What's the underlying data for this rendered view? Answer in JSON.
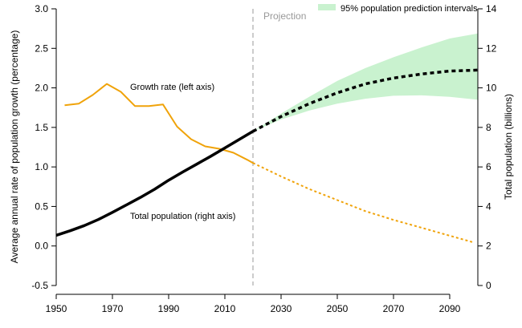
{
  "chart_data": {
    "type": "line",
    "title": "",
    "xlabel": "",
    "ylabel_left": "Average annual rate of population growth (percentage)",
    "ylabel_right": "Total population (billions)",
    "x_range": [
      1950,
      2100
    ],
    "x_ticks": [
      "1950",
      "1970",
      "1990",
      "2010",
      "2030",
      "2050",
      "2070",
      "2090"
    ],
    "y_left_range": [
      -0.5,
      3.0
    ],
    "y_left_ticks": [
      "-0.5",
      "0.0",
      "0.5",
      "1.0",
      "1.5",
      "2.0",
      "2.5",
      "3.0"
    ],
    "y_right_range": [
      0,
      14
    ],
    "y_right_ticks": [
      "0",
      "2",
      "4",
      "6",
      "8",
      "10",
      "12",
      "14"
    ],
    "projection_start": 2020,
    "projection_label": "Projection",
    "legend": {
      "label": "95% population prediction intervals",
      "position": "top-right",
      "color": "#c9f2cf"
    },
    "colors": {
      "growth": "#f0a30a",
      "population": "#000000",
      "projection_line": "#aaaaaa"
    },
    "annotations": {
      "growth": "Growth rate (left axis)",
      "population": "Total population (right axis)"
    },
    "series": [
      {
        "name": "Growth rate (left axis)",
        "axis": "left",
        "observed": {
          "x": [
            1953,
            1958,
            1963,
            1968,
            1973,
            1978,
            1983,
            1988,
            1993,
            1998,
            2003,
            2008,
            2013,
            2018,
            2020
          ],
          "y": [
            1.78,
            1.8,
            1.91,
            2.05,
            1.95,
            1.77,
            1.77,
            1.79,
            1.51,
            1.35,
            1.26,
            1.23,
            1.18,
            1.09,
            1.05
          ]
        },
        "projected": {
          "x": [
            2020,
            2030,
            2040,
            2050,
            2060,
            2070,
            2080,
            2090,
            2098
          ],
          "y": [
            1.05,
            0.88,
            0.72,
            0.58,
            0.44,
            0.33,
            0.23,
            0.13,
            0.05
          ]
        }
      },
      {
        "name": "Total population (right axis)",
        "axis": "right",
        "observed": {
          "x": [
            1950,
            1955,
            1960,
            1965,
            1970,
            1975,
            1980,
            1985,
            1990,
            1995,
            2000,
            2005,
            2010,
            2015,
            2020
          ],
          "y": [
            2.54,
            2.77,
            3.03,
            3.34,
            3.7,
            4.08,
            4.46,
            4.87,
            5.33,
            5.74,
            6.14,
            6.54,
            6.96,
            7.38,
            7.8
          ]
        },
        "projected": {
          "x": [
            2020,
            2030,
            2040,
            2050,
            2060,
            2070,
            2080,
            2090,
            2100
          ],
          "y": [
            7.8,
            8.55,
            9.2,
            9.75,
            10.2,
            10.5,
            10.7,
            10.85,
            10.9
          ]
        },
        "interval": {
          "x": [
            2020,
            2030,
            2040,
            2050,
            2060,
            2070,
            2080,
            2090,
            2100
          ],
          "low": [
            7.8,
            8.4,
            8.85,
            9.2,
            9.45,
            9.6,
            9.62,
            9.55,
            9.4
          ],
          "high": [
            7.8,
            8.7,
            9.55,
            10.35,
            11.0,
            11.55,
            12.05,
            12.5,
            12.75
          ]
        }
      }
    ]
  }
}
